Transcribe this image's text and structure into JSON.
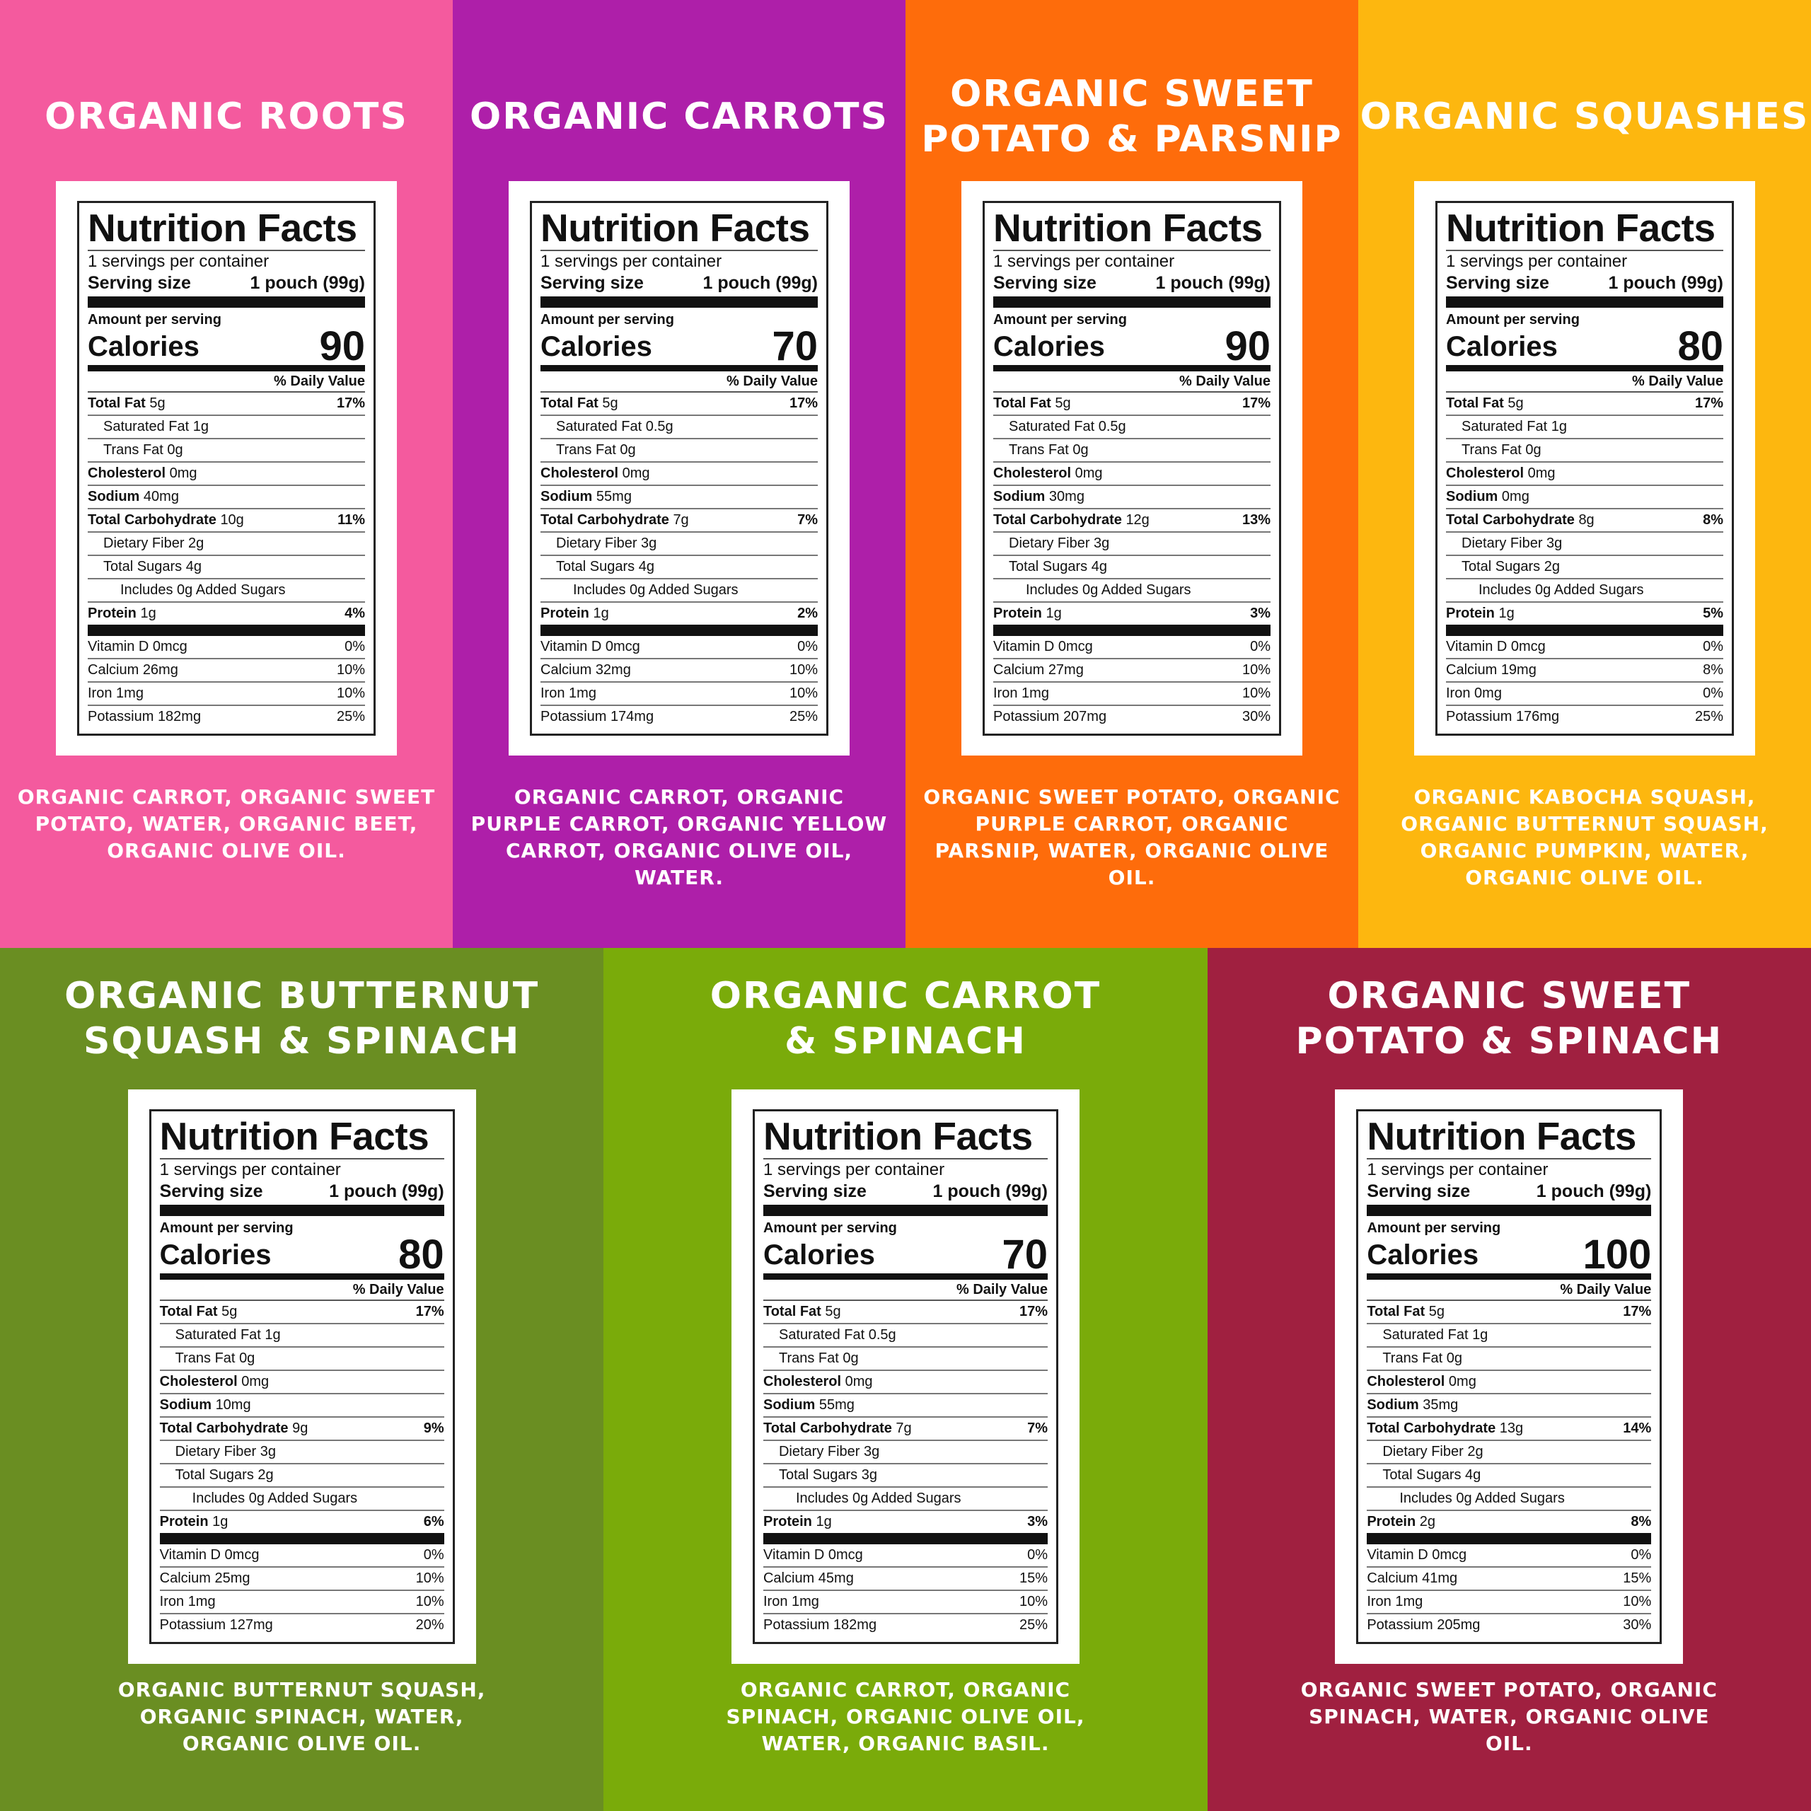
{
  "labels": {
    "title": "Nutrition Facts",
    "servings": "1 servings per container",
    "serving_size": "Serving size",
    "serving_value": "1 pouch (99g)",
    "amount": "Amount per serving",
    "calories": "Calories",
    "daily_value": "% Daily Value",
    "added_sugars": "Includes 0g Added Sugars"
  },
  "nutrients": [
    "Total Fat",
    "Saturated Fat",
    "Trans Fat",
    "Cholesterol",
    "Sodium",
    "Total Carbohydrate",
    "Dietary Fiber",
    "Total Sugars",
    "Protein",
    "Vitamin D",
    "Calcium",
    "Iron",
    "Potassium"
  ],
  "panels": [
    {
      "title_lines": [
        "ORGANIC ROOTS"
      ],
      "color": "#f45a9e",
      "calories": 90,
      "amounts": [
        "5g",
        "1g",
        "0g",
        "0mg",
        "40mg",
        "10g",
        "2g",
        "4g",
        "1g",
        "0mcg",
        "26mg",
        "1mg",
        "182mg"
      ],
      "daily_values": [
        "17%",
        "11%",
        "4%",
        "0%",
        "10%",
        "10%",
        "25%"
      ],
      "ingredients": "ORGANIC CARROT, ORGANIC SWEET POTATO, WATER, ORGANIC BEET, ORGANIC OLIVE OIL."
    },
    {
      "title_lines": [
        "ORGANIC CARROTS"
      ],
      "color": "#ae1fa9",
      "calories": 70,
      "amounts": [
        "5g",
        "0.5g",
        "0g",
        "0mg",
        "55mg",
        "7g",
        "3g",
        "4g",
        "1g",
        "0mcg",
        "32mg",
        "1mg",
        "174mg"
      ],
      "daily_values": [
        "17%",
        "7%",
        "2%",
        "0%",
        "10%",
        "10%",
        "25%"
      ],
      "ingredients": "ORGANIC CARROT, ORGANIC PURPLE CARROT, ORGANIC YELLOW CARROT, ORGANIC OLIVE OIL, WATER."
    },
    {
      "title_lines": [
        "ORGANIC SWEET",
        "POTATO & PARSNIP"
      ],
      "color": "#fe6c0b",
      "calories": 90,
      "amounts": [
        "5g",
        "0.5g",
        "0g",
        "0mg",
        "30mg",
        "12g",
        "3g",
        "4g",
        "1g",
        "0mcg",
        "27mg",
        "1mg",
        "207mg"
      ],
      "daily_values": [
        "17%",
        "13%",
        "3%",
        "0%",
        "10%",
        "10%",
        "30%"
      ],
      "ingredients": "ORGANIC SWEET POTATO, ORGANIC PURPLE CARROT, ORGANIC PARSNIP, WATER, ORGANIC OLIVE OIL."
    },
    {
      "title_lines": [
        "ORGANIC SQUASHES"
      ],
      "color": "#fdb70f",
      "calories": 80,
      "amounts": [
        "5g",
        "1g",
        "0g",
        "0mg",
        "0mg",
        "8g",
        "3g",
        "2g",
        "1g",
        "0mcg",
        "19mg",
        "0mg",
        "176mg"
      ],
      "daily_values": [
        "17%",
        "8%",
        "5%",
        "0%",
        "8%",
        "0%",
        "25%"
      ],
      "ingredients": "ORGANIC KABOCHA SQUASH, ORGANIC BUTTERNUT SQUASH, ORGANIC PUMPKIN, WATER, ORGANIC OLIVE OIL."
    },
    {
      "title_lines": [
        "ORGANIC BUTTERNUT",
        "SQUASH & SPINACH"
      ],
      "color": "#6a8e22",
      "calories": 80,
      "amounts": [
        "5g",
        "1g",
        "0g",
        "0mg",
        "10mg",
        "9g",
        "3g",
        "2g",
        "1g",
        "0mcg",
        "25mg",
        "1mg",
        "127mg"
      ],
      "daily_values": [
        "17%",
        "9%",
        "6%",
        "0%",
        "10%",
        "10%",
        "20%"
      ],
      "ingredients": "ORGANIC BUTTERNUT SQUASH, ORGANIC SPINACH, WATER, ORGANIC OLIVE OIL."
    },
    {
      "title_lines": [
        "ORGANIC CARROT",
        "& SPINACH"
      ],
      "color": "#7aab0a",
      "calories": 70,
      "amounts": [
        "5g",
        "0.5g",
        "0g",
        "0mg",
        "55mg",
        "7g",
        "3g",
        "3g",
        "1g",
        "0mcg",
        "45mg",
        "1mg",
        "182mg"
      ],
      "daily_values": [
        "17%",
        "7%",
        "3%",
        "0%",
        "15%",
        "10%",
        "25%"
      ],
      "ingredients": "ORGANIC CARROT, ORGANIC SPINACH, ORGANIC OLIVE OIL, WATER, ORGANIC BASIL."
    },
    {
      "title_lines": [
        "ORGANIC SWEET",
        "POTATO & SPINACH"
      ],
      "color": "#a02040",
      "calories": 100,
      "amounts": [
        "5g",
        "1g",
        "0g",
        "0mg",
        "35mg",
        "13g",
        "2g",
        "4g",
        "2g",
        "0mcg",
        "41mg",
        "1mg",
        "205mg"
      ],
      "daily_values": [
        "17%",
        "14%",
        "8%",
        "0%",
        "15%",
        "10%",
        "30%"
      ],
      "ingredients": "ORGANIC SWEET POTATO, ORGANIC SPINACH, WATER, ORGANIC OLIVE OIL."
    }
  ]
}
